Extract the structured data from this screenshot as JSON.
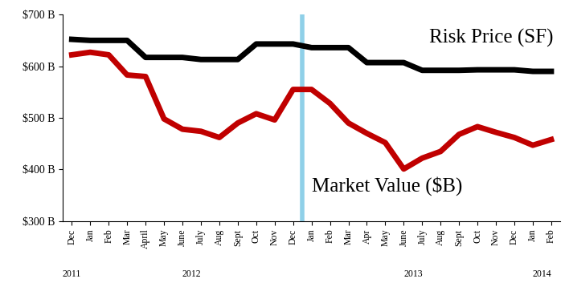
{
  "chart_data": {
    "type": "line",
    "categories": [
      "Dec",
      "Jan",
      "Feb",
      "Mar",
      "April",
      "May",
      "June",
      "July",
      "Aug",
      "Sept",
      "Oct",
      "Nov",
      "Dec",
      "Jan",
      "Feb",
      "Mar",
      "Apr",
      "May",
      "June",
      "July",
      "Aug",
      "Sept",
      "Oct",
      "Nov",
      "Dec",
      "Jan",
      "Feb"
    ],
    "x_groups": [
      {
        "label": "2011",
        "count": 1
      },
      {
        "label": "2012",
        "count": 12
      },
      {
        "label": "2013",
        "count": 12
      },
      {
        "label": "2014",
        "count": 2
      }
    ],
    "series": [
      {
        "name": "Risk Price (SF)",
        "color": "#000000",
        "values": [
          652,
          650,
          650,
          650,
          617,
          617,
          617,
          613,
          613,
          613,
          643,
          643,
          643,
          636,
          636,
          636,
          607,
          607,
          607,
          592,
          592,
          592,
          593,
          593,
          593,
          590,
          590
        ]
      },
      {
        "name": "Market Value ($B)",
        "color": "#c00000",
        "values": [
          622,
          627,
          622,
          583,
          580,
          498,
          478,
          474,
          462,
          490,
          508,
          496,
          555,
          555,
          528,
          490,
          470,
          452,
          401,
          422,
          435,
          468,
          483,
          472,
          462,
          447,
          458
        ]
      }
    ],
    "vline": {
      "x": 12.5,
      "color": "#8fd0e8"
    },
    "ylim": [
      300,
      700
    ],
    "yticks": [
      {
        "value": 300,
        "label": "$300 B"
      },
      {
        "value": 400,
        "label": "$400 B"
      },
      {
        "value": 500,
        "label": "$500 B"
      },
      {
        "value": 600,
        "label": "$600 B"
      },
      {
        "value": 700,
        "label": "$700 B"
      }
    ],
    "grid": false
  }
}
